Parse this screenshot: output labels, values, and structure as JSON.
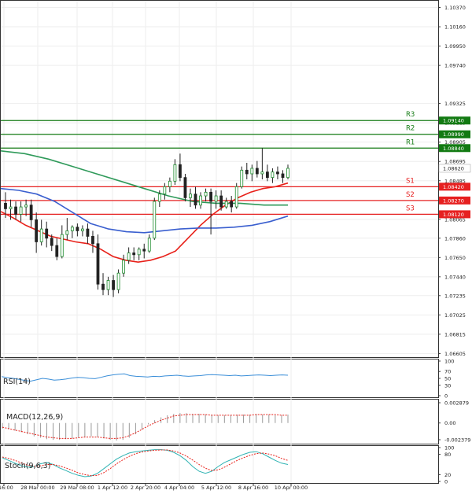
{
  "chart_data": [
    {
      "type": "candlestick",
      "title": "",
      "y_ticks": [
        "1.10370",
        "1.10160",
        "1.09950",
        "1.09740",
        "1.09325",
        "1.09115",
        "1.08905",
        "1.08695",
        "1.08485",
        "1.08065",
        "1.07860",
        "1.07650",
        "1.07440",
        "1.07235",
        "1.07025",
        "1.06815",
        "1.06605"
      ],
      "ylim": [
        1.066,
        1.104
      ],
      "x_ticks": [
        "r 16:00",
        "28 Mar 00:00",
        "29 Mar 08:00",
        "1 Apr 12:00",
        "2 Apr 20:00",
        "4 Apr 04:00",
        "5 Apr 12:00",
        "8 Apr 16:00",
        "10 Apr 00:00"
      ],
      "candles_ohlc": [
        [
          1.0824,
          1.0836,
          1.0808,
          1.0818
        ],
        [
          1.0818,
          1.0828,
          1.0806,
          1.082
        ],
        [
          1.082,
          1.0826,
          1.0806,
          1.0812
        ],
        [
          1.0812,
          1.0826,
          1.0804,
          1.082
        ],
        [
          1.082,
          1.0828,
          1.081,
          1.0822
        ],
        [
          1.0822,
          1.0828,
          1.0798,
          1.0806
        ],
        [
          1.0806,
          1.0814,
          1.077,
          1.0782
        ],
        [
          1.0782,
          1.0806,
          1.0778,
          1.0796
        ],
        [
          1.0796,
          1.0804,
          1.0776,
          1.0786
        ],
        [
          1.0786,
          1.079,
          1.0772,
          1.0778
        ],
        [
          1.0778,
          1.0786,
          1.0762,
          1.0766
        ],
        [
          1.0766,
          1.08,
          1.0764,
          1.079
        ],
        [
          1.079,
          1.0808,
          1.0784,
          1.0794
        ],
        [
          1.0794,
          1.08,
          1.0786,
          1.0798
        ],
        [
          1.0798,
          1.0802,
          1.0788,
          1.0794
        ],
        [
          1.0794,
          1.08,
          1.0788,
          1.0796
        ],
        [
          1.0796,
          1.0802,
          1.078,
          1.0788
        ],
        [
          1.0788,
          1.0794,
          1.077,
          1.078
        ],
        [
          1.078,
          1.079,
          1.073,
          1.0736
        ],
        [
          1.0736,
          1.0748,
          1.0724,
          1.073
        ],
        [
          1.073,
          1.0744,
          1.0724,
          1.074
        ],
        [
          1.074,
          1.0746,
          1.0722,
          1.073
        ],
        [
          1.073,
          1.0752,
          1.0726,
          1.0748
        ],
        [
          1.0748,
          1.0768,
          1.0744,
          1.0762
        ],
        [
          1.0762,
          1.0776,
          1.0758,
          1.077
        ],
        [
          1.077,
          1.0776,
          1.0762,
          1.0768
        ],
        [
          1.0768,
          1.0776,
          1.0762,
          1.0774
        ],
        [
          1.0774,
          1.078,
          1.0764,
          1.0772
        ],
        [
          1.0772,
          1.079,
          1.077,
          1.0786
        ],
        [
          1.0786,
          1.083,
          1.0784,
          1.0826
        ],
        [
          1.0826,
          1.0838,
          1.082,
          1.0834
        ],
        [
          1.0834,
          1.0846,
          1.0828,
          1.0842
        ],
        [
          1.0842,
          1.0852,
          1.0836,
          1.0848
        ],
        [
          1.0848,
          1.0872,
          1.0844,
          1.0866
        ],
        [
          1.0866,
          1.0878,
          1.0848,
          1.0852
        ],
        [
          1.0852,
          1.0856,
          1.0826,
          1.083
        ],
        [
          1.083,
          1.084,
          1.082,
          1.0834
        ],
        [
          1.0834,
          1.0842,
          1.0818,
          1.0822
        ],
        [
          1.0822,
          1.0836,
          1.0818,
          1.0832
        ],
        [
          1.0832,
          1.084,
          1.0826,
          1.0836
        ],
        [
          1.0836,
          1.084,
          1.079,
          1.0826
        ],
        [
          1.0826,
          1.0838,
          1.0818,
          1.0832
        ],
        [
          1.0832,
          1.0838,
          1.0816,
          1.082
        ],
        [
          1.082,
          1.083,
          1.0818,
          1.0826
        ],
        [
          1.0826,
          1.0832,
          1.0814,
          1.082
        ],
        [
          1.082,
          1.0846,
          1.0818,
          1.0842
        ],
        [
          1.0842,
          1.0864,
          1.084,
          1.086
        ],
        [
          1.086,
          1.0868,
          1.085,
          1.0856
        ],
        [
          1.0856,
          1.0866,
          1.0848,
          1.0862
        ],
        [
          1.0862,
          1.087,
          1.0852,
          1.0856
        ],
        [
          1.0856,
          1.0884,
          1.085,
          1.0858
        ],
        [
          1.0858,
          1.0866,
          1.0848,
          1.0852
        ],
        [
          1.0852,
          1.0862,
          1.0846,
          1.0858
        ],
        [
          1.0858,
          1.0864,
          1.085,
          1.0856
        ],
        [
          1.0856,
          1.086,
          1.0846,
          1.0852
        ],
        [
          1.0852,
          1.0866,
          1.085,
          1.0862
        ]
      ],
      "ma_lines": [
        {
          "color": "#e8211a",
          "values": [
            1.0815,
            1.0808,
            1.08,
            1.0794,
            1.0788,
            1.0785,
            1.0782,
            1.078,
            1.0774,
            1.0766,
            1.0762,
            1.076,
            1.0762,
            1.0766,
            1.0772,
            1.0786,
            1.08,
            1.0812,
            1.0822,
            1.083,
            1.0836,
            1.084,
            1.0842,
            1.0846
          ]
        },
        {
          "color": "#3a5fcf",
          "values": [
            1.084,
            1.0838,
            1.0834,
            1.0826,
            1.0814,
            1.0802,
            1.0796,
            1.0793,
            1.0792,
            1.0794,
            1.0796,
            1.0797,
            1.0797,
            1.0798,
            1.08,
            1.0804,
            1.081
          ]
        },
        {
          "color": "#2f9a5a",
          "values": [
            1.0881,
            1.0878,
            1.0872,
            1.0864,
            1.0856,
            1.0848,
            1.084,
            1.0832,
            1.0826,
            1.0824,
            1.0824,
            1.0822,
            1.0822
          ]
        }
      ],
      "levels": [
        {
          "label": "R3",
          "value": "1.09140",
          "color": "#127a12"
        },
        {
          "label": "R2",
          "value": "1.08990",
          "color": "#127a12"
        },
        {
          "label": "R1",
          "value": "1.08840",
          "color": "#127a12"
        },
        {
          "label": "S1",
          "value": "1.08420",
          "color": "#e62020"
        },
        {
          "label": "S2",
          "value": "1.08270",
          "color": "#e62020"
        },
        {
          "label": "S3",
          "value": "1.08120",
          "color": "#e62020"
        }
      ],
      "current_price": "1.08620",
      "grid": true
    },
    {
      "type": "line",
      "name": "RSI(14)",
      "y_ticks": [
        "100",
        "70",
        "50",
        "30",
        "0"
      ],
      "ylim": [
        0,
        100
      ],
      "values": [
        55,
        52,
        50,
        47,
        44,
        42,
        46,
        50,
        48,
        45,
        46,
        48,
        51,
        53,
        52,
        50,
        49,
        53,
        57,
        60,
        62,
        63,
        58,
        56,
        55,
        54,
        56,
        55,
        57,
        58,
        59,
        57,
        56,
        57,
        58,
        60,
        61,
        60,
        59,
        58,
        59,
        57,
        58,
        59,
        60,
        59,
        58,
        59,
        60,
        59
      ],
      "color": "#3a8ed8"
    },
    {
      "type": "bar",
      "name": "MACD(12,26,9)",
      "y_ticks": [
        "0.002879",
        "0.00",
        "-0.002379"
      ],
      "ylim": [
        -0.002379,
        0.002879
      ],
      "values": [
        -0.0008,
        -0.0009,
        -0.0011,
        -0.0013,
        -0.0016,
        -0.0019,
        -0.0021,
        -0.0023,
        -0.0024,
        -0.0024,
        -0.0023,
        -0.0022,
        -0.0021,
        -0.002,
        -0.0019,
        -0.002,
        -0.0022,
        -0.0024,
        -0.0025,
        -0.0024,
        -0.0021,
        -0.0016,
        -0.0009,
        -0.0002,
        0.0004,
        0.0008,
        0.0011,
        0.0013,
        0.0014,
        0.0014,
        0.0013,
        0.0013,
        0.0012,
        0.0012,
        0.0011,
        0.0011,
        0.0011,
        0.0012,
        0.0012,
        0.0012,
        0.0013,
        0.0012,
        0.0012,
        0.0011,
        0.0011,
        0.0012
      ],
      "signal": [
        -0.0006,
        -0.0008,
        -0.001,
        -0.0012,
        -0.0014,
        -0.0016,
        -0.0018,
        -0.002,
        -0.0021,
        -0.0022,
        -0.0022,
        -0.0022,
        -0.0021,
        -0.002,
        -0.002,
        -0.002,
        -0.0021,
        -0.0022,
        -0.0022,
        -0.0021,
        -0.0018,
        -0.0014,
        -0.0009,
        -0.0004,
        0.0,
        0.0004,
        0.0007,
        0.001,
        0.0011,
        0.0012,
        0.0012,
        0.0012,
        0.0012,
        0.0011,
        0.0011,
        0.0011,
        0.0011,
        0.0011,
        0.0011,
        0.0011,
        0.0012,
        0.0012,
        0.0012,
        0.0012,
        0.0011,
        0.0011
      ],
      "bar_color": "#9a9a9a",
      "signal_color": "#e8211a"
    },
    {
      "type": "line",
      "name": "Stoch(9,6,3)",
      "y_ticks": [
        "100",
        "80",
        "20",
        "0"
      ],
      "ylim": [
        0,
        100
      ],
      "k": [
        70,
        62,
        54,
        46,
        42,
        44,
        52,
        56,
        50,
        40,
        32,
        24,
        18,
        14,
        16,
        24,
        38,
        52,
        66,
        76,
        84,
        88,
        90,
        92,
        94,
        94,
        92,
        86,
        76,
        62,
        44,
        30,
        24,
        30,
        44,
        56,
        64,
        72,
        80,
        86,
        88,
        82,
        72,
        62,
        54,
        50
      ],
      "d": [
        72,
        68,
        62,
        55,
        48,
        45,
        46,
        50,
        50,
        46,
        40,
        33,
        25,
        20,
        17,
        18,
        26,
        38,
        52,
        64,
        74,
        82,
        87,
        90,
        92,
        93,
        93,
        90,
        84,
        75,
        63,
        50,
        39,
        32,
        34,
        42,
        52,
        62,
        70,
        77,
        82,
        84,
        81,
        76,
        68,
        62
      ],
      "k_color": "#2fb3b3",
      "d_color": "#e8211a"
    }
  ]
}
